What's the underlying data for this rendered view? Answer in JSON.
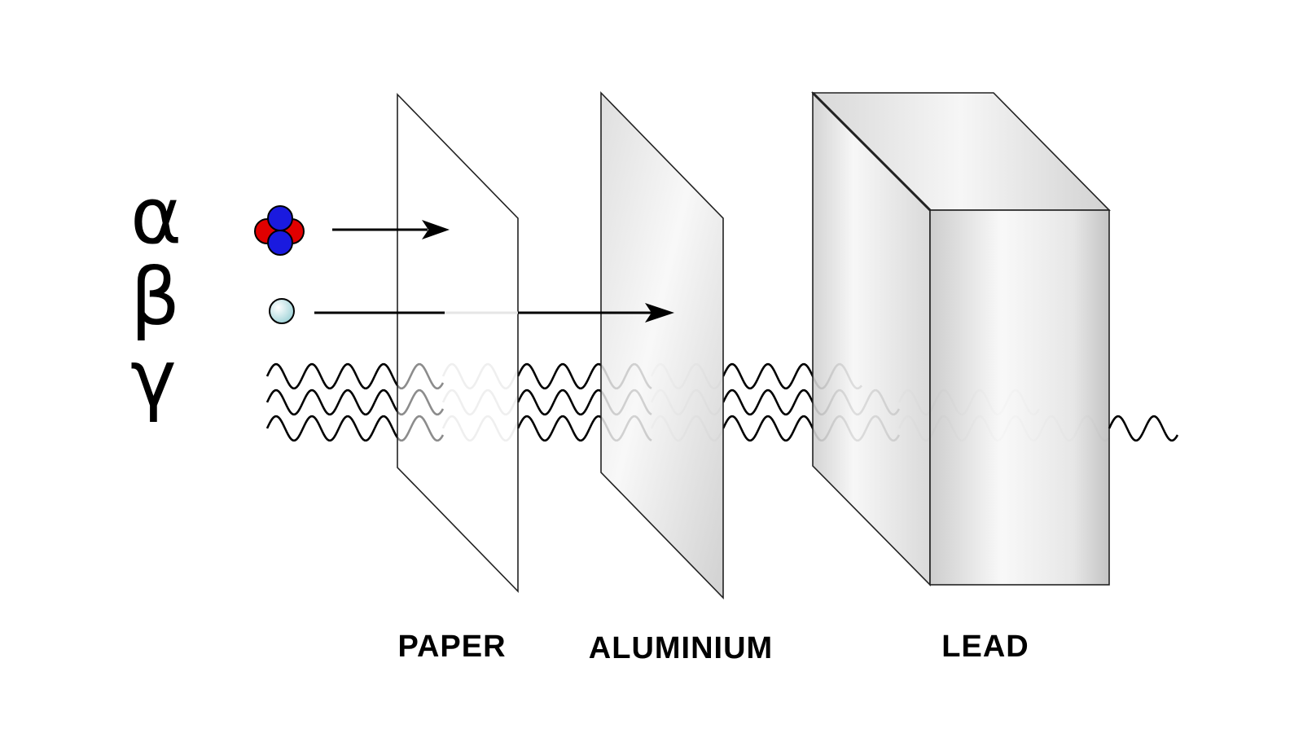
{
  "radiation": {
    "alpha": {
      "symbol": "α",
      "stopped_by": "PAPER"
    },
    "beta": {
      "symbol": "β",
      "stopped_by": "ALUMINIUM"
    },
    "gamma": {
      "symbol": "γ",
      "stopped_by": ""
    }
  },
  "materials": [
    {
      "label": "PAPER"
    },
    {
      "label": "ALUMINIUM"
    },
    {
      "label": "LEAD"
    }
  ],
  "colors": {
    "proton": "#e00000",
    "neutron": "#1a1adf",
    "electron": "#bfe6ea",
    "line": "#000000",
    "faded_line": "#dcdcdc"
  }
}
